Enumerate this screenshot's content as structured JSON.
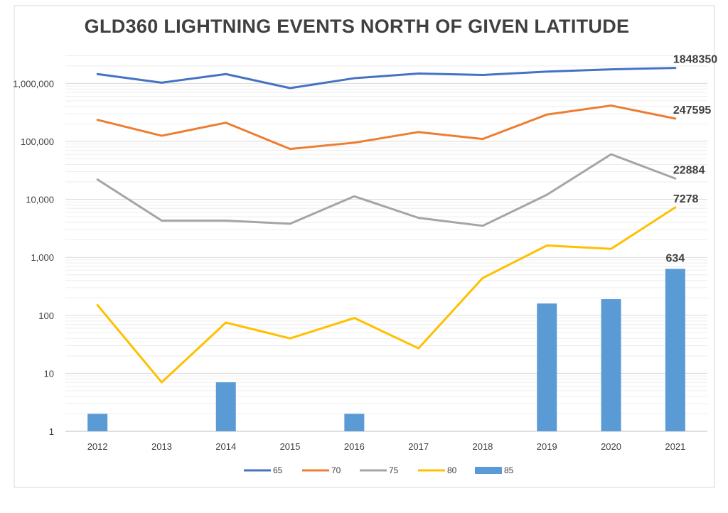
{
  "chart_data": {
    "type": "line",
    "title": "GLD360 LIGHTNING EVENTS NORTH OF GIVEN LATITUDE",
    "xlabel": "",
    "ylabel": "",
    "y_scale": "log",
    "ylim": [
      1,
      3000000
    ],
    "categories": [
      "2012",
      "2013",
      "2014",
      "2015",
      "2016",
      "2017",
      "2018",
      "2019",
      "2020",
      "2021"
    ],
    "y_ticks": [
      {
        "value": 1,
        "label": "1"
      },
      {
        "value": 10,
        "label": "10"
      },
      {
        "value": 100,
        "label": "100"
      },
      {
        "value": 1000,
        "label": "1,000"
      },
      {
        "value": 10000,
        "label": "10,000"
      },
      {
        "value": 100000,
        "label": "100,000"
      },
      {
        "value": 1000000,
        "label": "1,000,000"
      }
    ],
    "series": [
      {
        "name": "65",
        "kind": "line",
        "color": "#4472c4",
        "values": [
          1450000,
          1030000,
          1450000,
          830000,
          1230000,
          1480000,
          1400000,
          1600000,
          1750000,
          1848350
        ],
        "end_label": "1848350"
      },
      {
        "name": "70",
        "kind": "line",
        "color": "#ed7d31",
        "values": [
          235000,
          125000,
          210000,
          74000,
          95000,
          145000,
          110000,
          290000,
          415000,
          247595
        ],
        "end_label": "247595"
      },
      {
        "name": "75",
        "kind": "line",
        "color": "#a5a5a5",
        "values": [
          22000,
          4300,
          4300,
          3800,
          11300,
          4800,
          3500,
          12000,
          60000,
          22884
        ],
        "end_label": "22884"
      },
      {
        "name": "80",
        "kind": "line",
        "color": "#ffc000",
        "values": [
          150,
          7,
          75,
          40,
          90,
          27,
          440,
          1600,
          1400,
          7278
        ],
        "end_label": "7278"
      },
      {
        "name": "85",
        "kind": "bar",
        "color": "#5b9bd5",
        "values": [
          2,
          null,
          7,
          null,
          2,
          null,
          null,
          160,
          190,
          634
        ],
        "end_label": "634"
      }
    ],
    "legend_position": "bottom",
    "grid": true
  }
}
